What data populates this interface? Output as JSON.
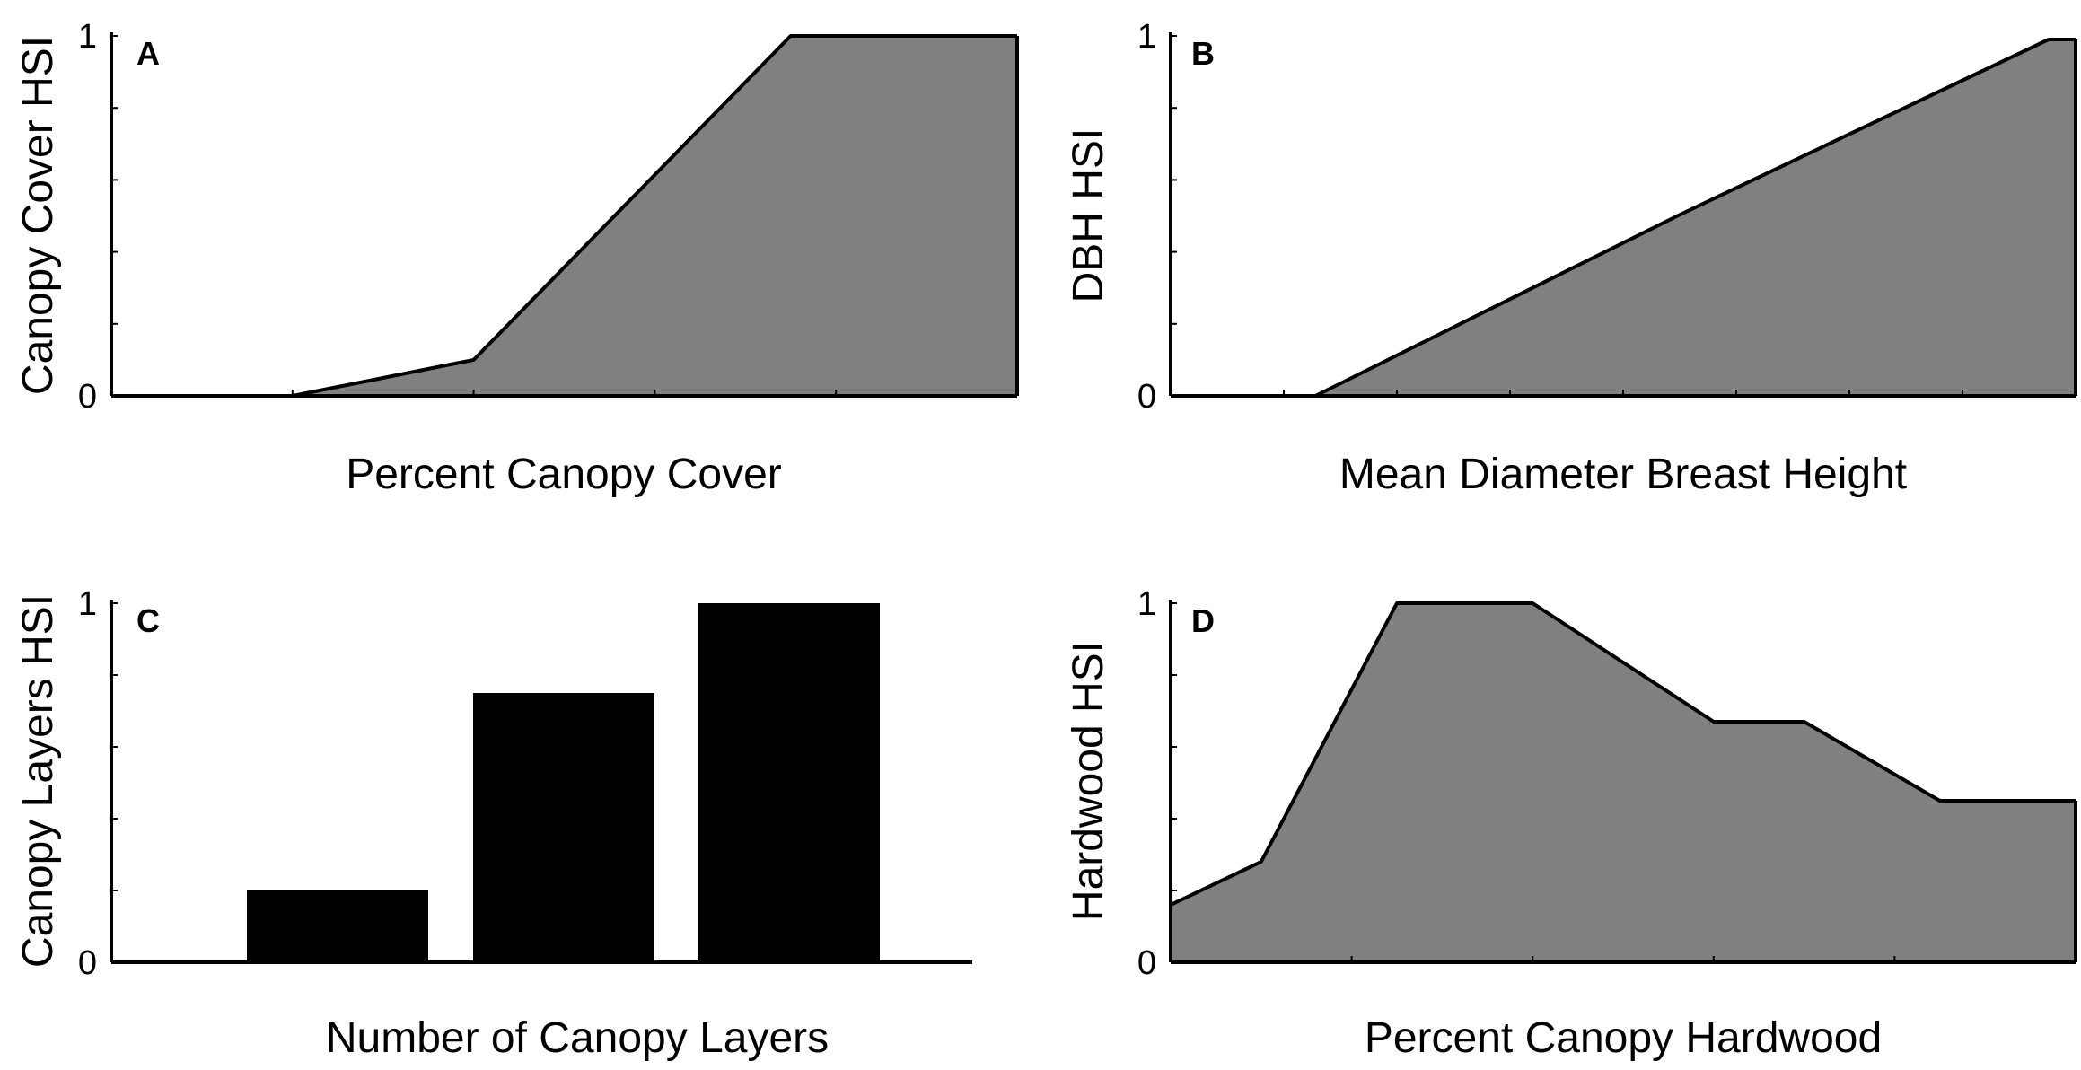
{
  "figure": {
    "fill_color": "#808080",
    "bar_color": "#000000",
    "line_color": "#000000"
  },
  "chart_data": [
    {
      "panel": "A",
      "type": "area",
      "xlabel": "Percent Canopy Cover",
      "ylabel": "Canopy Cover HSI",
      "xlim": [
        0,
        100
      ],
      "ylim": [
        0,
        1
      ],
      "yticks": [
        0,
        0.2,
        0.4,
        0.6,
        0.8,
        1
      ],
      "ytick_labels": [
        "0",
        "",
        "",
        "",
        "",
        "1"
      ],
      "xticks": [
        0,
        20,
        40,
        60,
        80,
        100
      ],
      "x": [
        0,
        20,
        40,
        75,
        100
      ],
      "y": [
        0,
        0,
        0.1,
        1,
        1
      ]
    },
    {
      "panel": "B",
      "type": "area",
      "xlabel": "Mean Diameter Breast Height",
      "ylabel": "DBH HSI",
      "xlim": [
        0,
        100
      ],
      "ylim": [
        0,
        1
      ],
      "yticks": [
        0,
        0.2,
        0.4,
        0.6,
        0.8,
        1
      ],
      "ytick_labels": [
        "0",
        "",
        "",
        "",
        "",
        "1"
      ],
      "xticks": [
        0,
        12.5,
        25,
        37.5,
        50,
        62.5,
        75,
        87.5,
        100
      ],
      "x": [
        0,
        16,
        56,
        97,
        100
      ],
      "y": [
        0,
        0,
        0.5,
        0.99,
        0.99
      ]
    },
    {
      "panel": "C",
      "type": "bar",
      "xlabel": "Number of Canopy Layers",
      "ylabel": "Canopy Layers HSI",
      "xlim": [
        0,
        100
      ],
      "ylim": [
        0,
        1
      ],
      "yticks": [
        0,
        0.2,
        0.4,
        0.6,
        0.8,
        1
      ],
      "ytick_labels": [
        "0",
        "",
        "",
        "",
        "",
        "1"
      ],
      "categories": [
        "",
        "",
        ""
      ],
      "values": [
        0.2,
        0.75,
        1.0
      ]
    },
    {
      "panel": "D",
      "type": "area",
      "xlabel": "Percent Canopy Hardwood",
      "ylabel": "Hardwood HSI",
      "xlim": [
        0,
        100
      ],
      "ylim": [
        0,
        1
      ],
      "yticks": [
        0,
        0.2,
        0.4,
        0.6,
        0.8,
        1
      ],
      "ytick_labels": [
        "0",
        "",
        "",
        "",
        "",
        "1"
      ],
      "xticks": [
        0,
        20,
        40,
        60,
        80,
        100
      ],
      "x": [
        0,
        10,
        25,
        40,
        60,
        70,
        85,
        100
      ],
      "y": [
        0.16,
        0.28,
        1,
        1,
        0.67,
        0.67,
        0.45,
        0.45
      ]
    }
  ]
}
